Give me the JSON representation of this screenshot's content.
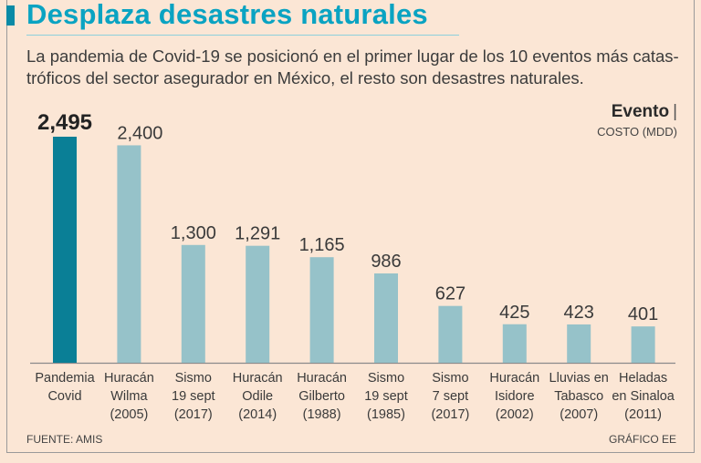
{
  "title": "Desplaza desastres naturales",
  "subtitle": "La pandemia de Covid-19 se posicionó en el primer lugar de los 10 eventos más catas­tróficos del sector asegurador en México, el resto son desastres naturales.",
  "legend": {
    "title": "Evento",
    "separator": "|",
    "subtitle": "COSTO (MDD)"
  },
  "source": "FUENTE: AMIS",
  "credit": "GRÁFICO EE",
  "colors": {
    "highlight": "#0a7f96",
    "bar": "#96c2c9",
    "title": "#0aa3c2"
  },
  "chart_data": {
    "type": "bar",
    "title": "Desplaza desastres naturales",
    "ylabel": "COSTO (MDD)",
    "ylim": [
      0,
      2495
    ],
    "grid": false,
    "categories": [
      [
        "Pandemia",
        "Covid"
      ],
      [
        "Huracán",
        "Wilma",
        "(2005)"
      ],
      [
        "Sismo",
        "19 sept",
        "(2017)"
      ],
      [
        "Huracán",
        "Odile",
        "(2014)"
      ],
      [
        "Huracán",
        "Gilberto",
        "(1988)"
      ],
      [
        "Sismo",
        "19 sept",
        "(1985)"
      ],
      [
        "Sismo",
        "7 sept",
        "(2017)"
      ],
      [
        "Huracán",
        "Isidore",
        "(2002)"
      ],
      [
        "Lluvias en",
        "Tabasco",
        "(2007)"
      ],
      [
        "Heladas",
        "en Sinaloa",
        "(2011)"
      ]
    ],
    "values": [
      2495,
      2400,
      1300,
      1291,
      1165,
      986,
      627,
      425,
      423,
      401
    ],
    "value_labels": [
      "2,495",
      "2,400",
      "1,300",
      "1,291",
      "1,165",
      "986",
      "627",
      "425",
      "423",
      "401"
    ],
    "highlight_index": 0
  }
}
